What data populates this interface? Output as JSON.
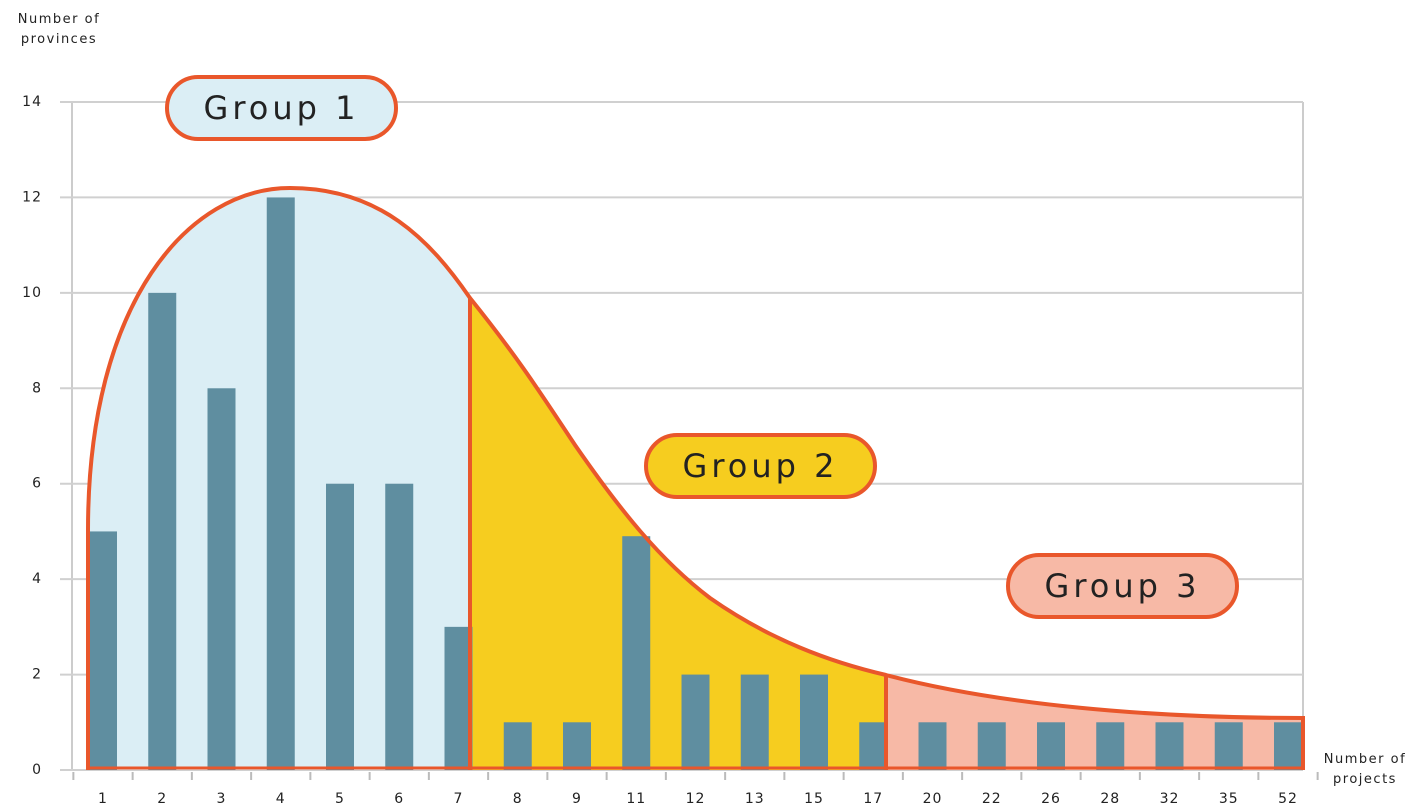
{
  "chart_data": {
    "type": "bar",
    "y_label": "Number of provinces",
    "x_label": "Number of projects",
    "categories": [
      "1",
      "2",
      "3",
      "4",
      "5",
      "6",
      "7",
      "8",
      "9",
      "11",
      "12",
      "13",
      "15",
      "17",
      "20",
      "22",
      "26",
      "28",
      "32",
      "35",
      "52"
    ],
    "values": [
      5,
      10,
      8,
      12,
      6,
      6,
      3,
      1,
      1,
      4.9,
      2,
      2,
      2,
      1,
      1,
      1,
      1,
      1,
      1,
      1,
      1
    ],
    "color": "#5f8ea0",
    "ylim": [
      0,
      14
    ],
    "yticks": [
      0,
      2,
      4,
      6,
      8,
      10,
      12,
      14
    ],
    "grid": true,
    "annotations": [
      {
        "text": "Group 1"
      },
      {
        "text": "Group 2"
      },
      {
        "text": "Group 3"
      }
    ]
  }
}
